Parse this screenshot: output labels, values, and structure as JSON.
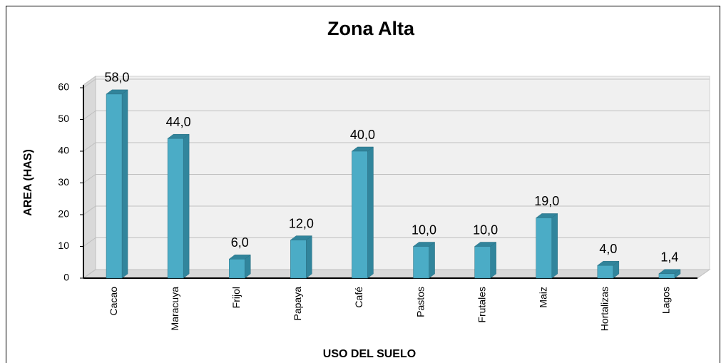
{
  "chart_data": {
    "type": "bar",
    "title": "Zona Alta",
    "x_label": "USO DEL SUELO",
    "y_label": "AREA (HAS)",
    "categories": [
      "Cacao",
      "Maracuya",
      "Frijol",
      "Papaya",
      "Café",
      "Pastos",
      "Frutales",
      "Maiz",
      "Hortalizas",
      "Lagos"
    ],
    "values": [
      58,
      44,
      6,
      12,
      40,
      10,
      10,
      19,
      4,
      1.4
    ],
    "value_labels": [
      "58,0",
      "44,0",
      "6,0",
      "12,0",
      "40,0",
      "10,0",
      "10,0",
      "19,0",
      "4,0",
      "1,4"
    ],
    "color": "#4bacc6",
    "ylim": [
      0,
      60
    ],
    "yticks": [
      0,
      10,
      20,
      30,
      40,
      50,
      60
    ],
    "grid": true
  }
}
